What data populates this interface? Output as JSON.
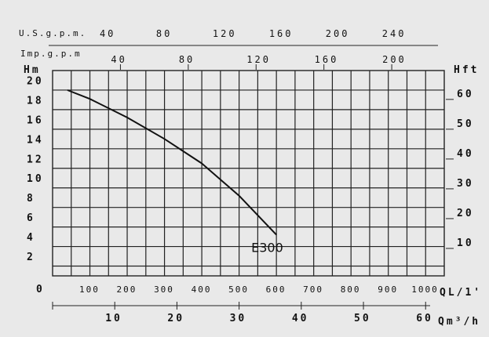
{
  "chart_data": {
    "type": "line",
    "axes": {
      "top_us": {
        "label": "U.S.g.p.m.",
        "ticks": [
          "40",
          "80",
          "120",
          "160",
          "200",
          "240"
        ],
        "values": [
          40,
          80,
          120,
          160,
          200,
          240
        ]
      },
      "top_imp": {
        "label": "Imp.g.p.m",
        "ticks": [
          "40",
          "80",
          "120",
          "160",
          "200"
        ],
        "values": [
          40,
          80,
          120,
          160,
          200
        ]
      },
      "left": {
        "label": "Hm",
        "ticks": [
          "20",
          "18",
          "16",
          "14",
          "12",
          "10",
          "8",
          "6",
          "4",
          "2"
        ],
        "values": [
          20,
          18,
          16,
          14,
          12,
          10,
          8,
          6,
          4,
          2
        ],
        "ylim": [
          0,
          21
        ]
      },
      "right": {
        "label": "Hft",
        "ticks": [
          "60",
          "50",
          "40",
          "30",
          "20",
          "10"
        ],
        "values": [
          60,
          50,
          40,
          30,
          20,
          10
        ]
      },
      "bottom": {
        "label": "QL/1'",
        "ticks": [
          "0",
          "100",
          "200",
          "300",
          "400",
          "500",
          "600",
          "700",
          "800",
          "900",
          "1000"
        ],
        "values": [
          0,
          100,
          200,
          300,
          400,
          500,
          600,
          700,
          800,
          900,
          1000
        ],
        "xlim": [
          0,
          1050
        ]
      },
      "bottom2": {
        "label": "Qm³/h",
        "ticks": [
          "10",
          "20",
          "30",
          "40",
          "50",
          "60"
        ],
        "values": [
          10,
          20,
          30,
          40,
          50,
          60
        ]
      }
    },
    "grid": true,
    "series": [
      {
        "name": "E300",
        "x": [
          40,
          100,
          200,
          300,
          400,
          500,
          600
        ],
        "y": [
          19,
          18.1,
          16.2,
          14.0,
          11.5,
          8.2,
          4.2
        ]
      }
    ]
  }
}
